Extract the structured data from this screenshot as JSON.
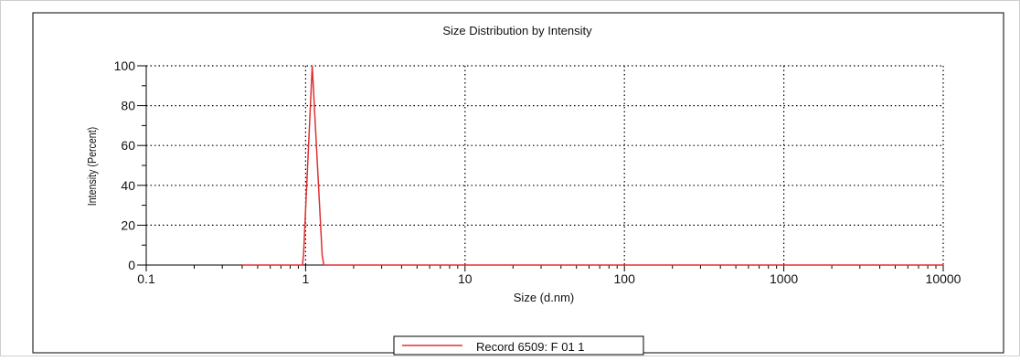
{
  "chart_data": {
    "type": "line",
    "title": "Size Distribution by Intensity",
    "xlabel": "Size (d.nm)",
    "ylabel": "Intensity (Percent)",
    "x_scale": "log",
    "xlim": [
      0.1,
      10000
    ],
    "ylim": [
      0,
      100
    ],
    "x_ticks": [
      0.1,
      1,
      10,
      100,
      1000,
      10000
    ],
    "x_tick_labels": [
      "0.1",
      "1",
      "10",
      "100",
      "1000",
      "10000"
    ],
    "y_ticks": [
      0,
      20,
      40,
      60,
      80,
      100
    ],
    "y_tick_labels": [
      "0",
      "20",
      "40",
      "60",
      "80",
      "100"
    ],
    "grid": true,
    "legend_position": "bottom-center",
    "series": [
      {
        "name": "Record 6509: F 01 1",
        "color": "#e03030",
        "x": [
          0.4,
          0.955,
          0.97,
          1.1,
          1.27,
          1.3,
          10000
        ],
        "y": [
          0,
          0,
          5,
          100,
          5,
          0,
          0
        ]
      }
    ]
  }
}
